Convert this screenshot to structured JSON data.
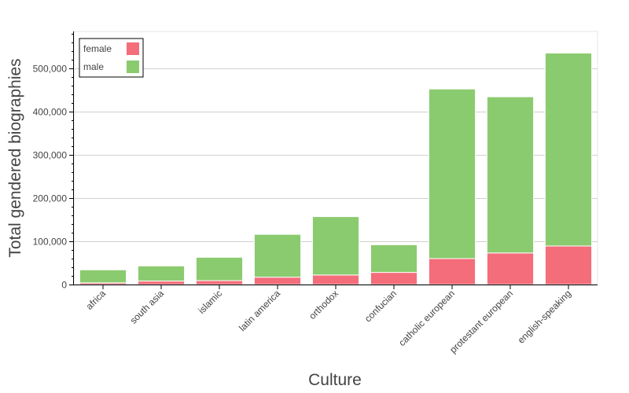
{
  "chart_data": {
    "type": "bar",
    "stacked": true,
    "categories": [
      "africa",
      "south asia",
      "islamic",
      "latin america",
      "orthodox",
      "confucian",
      "catholic european",
      "protestant european",
      "english-speaking"
    ],
    "series": [
      {
        "name": "female",
        "color": "#f46d7a",
        "values": [
          4000,
          8000,
          9000,
          17000,
          22000,
          28000,
          60000,
          73000,
          89000
        ]
      },
      {
        "name": "male",
        "color": "#8bcb6f",
        "values": [
          30000,
          35000,
          54000,
          99000,
          135000,
          64000,
          392000,
          361000,
          446000
        ]
      }
    ],
    "xlabel": "Culture",
    "ylabel": "Total gendered biographies",
    "ylim": [
      0,
      585000
    ],
    "yticks": [
      0,
      100000,
      200000,
      300000,
      400000,
      500000
    ],
    "ytick_labels": [
      "0",
      "100,000",
      "200,000",
      "300,000",
      "400,000",
      "500,000"
    ],
    "grid": "horizontal",
    "legend_position": "top-left"
  }
}
